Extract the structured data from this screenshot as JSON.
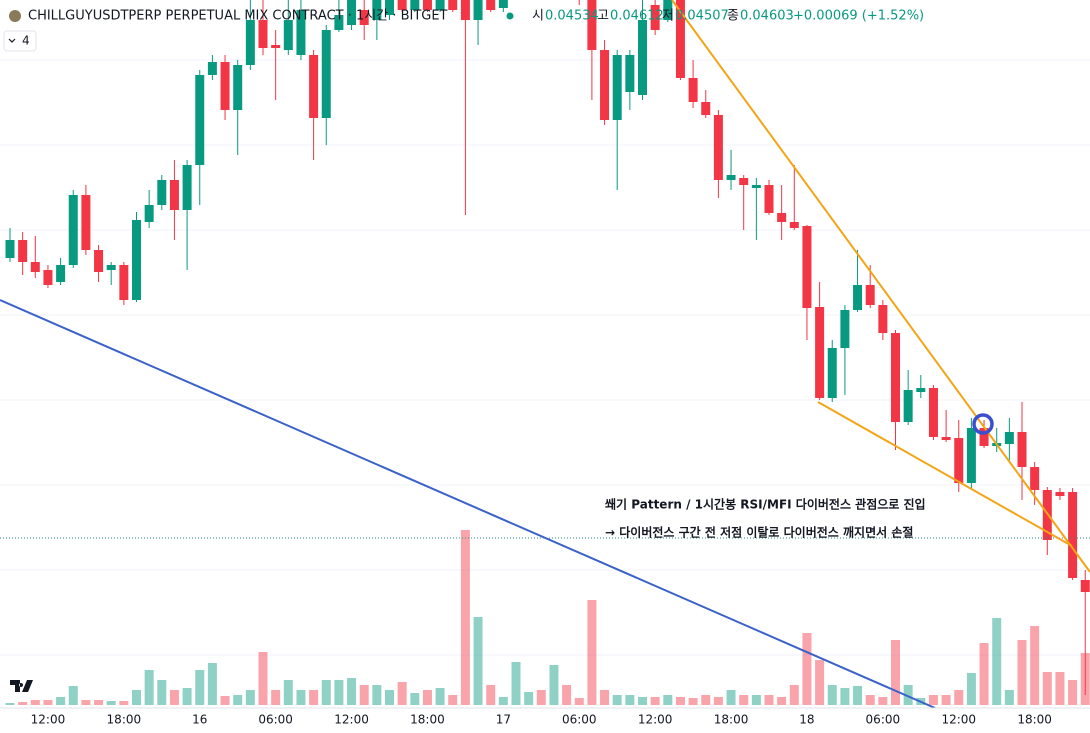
{
  "header": {
    "symbol": "CHILLGUYUSDTPERP PERPETUAL MIX CONTRACT · 1시간 · BITGET",
    "ohlc": [
      {
        "label": "시",
        "value": 0.04534
      },
      {
        "label": "고",
        "value": 0.04612
      },
      {
        "label": "저",
        "value": 0.04507
      },
      {
        "label": "종",
        "value": 0.04603
      }
    ],
    "change": "+0.00069 (+1.52%)",
    "indicators": "4"
  },
  "annotations": [
    "쐐기 Pattern / 1시간봉 RSI/MFI 다이버전스 관점으로 진입",
    "→ 다이버전스 구간 전 저점 이탈로 다이버전스 깨지면서 손절"
  ],
  "chart_data": {
    "type": "candlestick",
    "up_color": "#089981",
    "down_color": "#f23645",
    "ylim": [
      0.04295,
      0.05
    ],
    "y2lim": [
      0,
      705
    ],
    "categories": [
      null,
      null,
      null,
      "12:00",
      null,
      null,
      null,
      null,
      null,
      "18:00",
      null,
      null,
      null,
      null,
      null,
      "16",
      null,
      null,
      null,
      null,
      null,
      "06:00",
      null,
      null,
      null,
      null,
      null,
      "12:00",
      null,
      null,
      null,
      null,
      null,
      "18:00",
      null,
      null,
      null,
      null,
      null,
      "17",
      null,
      null,
      null,
      null,
      null,
      "06:00",
      null,
      null,
      null,
      null,
      null,
      "12:00",
      null,
      null,
      null,
      null,
      null,
      "18:00",
      null,
      null,
      null,
      null,
      null,
      "18",
      null,
      null,
      null,
      null,
      null,
      "06:00",
      null,
      null,
      null,
      null,
      null,
      "12:00",
      null,
      null,
      null,
      null,
      null,
      "18:00",
      null,
      null,
      null,
      null
    ],
    "open": [
      0.04742,
      0.0476,
      0.04738,
      0.0473,
      0.04718,
      0.04735,
      0.04805,
      0.0475,
      0.0473,
      0.04735,
      0.047,
      0.04778,
      0.04795,
      0.0482,
      0.0479,
      0.04835,
      0.04925,
      0.04938,
      0.0489,
      0.04935,
      0.0498,
      0.04955,
      0.0495,
      0.04945,
      0.04945,
      0.04882,
      0.0497,
      0.04975,
      0.0499,
      0.0498,
      0.04985,
      0.05,
      0.0499,
      0.05,
      0.0499,
      0.05,
      0.05,
      0.0498,
      0.05,
      0.04992,
      0.05005,
      0.0503,
      0.0505,
      0.05025,
      0.0504,
      0.0501,
      0.05,
      0.0495,
      0.0488,
      0.04908,
      0.04905,
      0.04995,
      0.0498,
      0.05,
      0.04922,
      0.04898,
      0.04885,
      0.0482,
      0.04822,
      0.04812,
      0.04815,
      0.04787,
      0.04778,
      0.04774,
      0.04693,
      0.04602,
      0.04652,
      0.0469,
      0.04715,
      0.04695,
      0.04667,
      0.04578,
      0.04608,
      0.04612,
      0.04563,
      0.04562,
      0.04517,
      0.04572,
      0.04554,
      0.04556,
      0.04568,
      0.04533,
      0.0451,
      0.04508,
      0.04508,
      0.0442
    ],
    "high": [
      0.04772,
      0.04768,
      0.04764,
      0.04735,
      0.04742,
      0.0481,
      0.04815,
      0.04755,
      0.04738,
      0.04738,
      0.04788,
      0.0481,
      0.04825,
      0.0484,
      0.0484,
      0.0493,
      0.04945,
      0.04945,
      0.0494,
      0.05,
      0.05,
      0.0497,
      0.05,
      0.05,
      0.0495,
      0.04975,
      0.05,
      0.05005,
      0.0501,
      0.0501,
      0.0501,
      0.0501,
      0.0501,
      0.0501,
      0.0501,
      0.0501,
      0.0501,
      0.0501,
      0.0501,
      0.0501,
      0.0504,
      0.0506,
      0.0506,
      0.0505,
      0.0505,
      0.0503,
      0.0501,
      0.0496,
      0.0495,
      0.0495,
      0.0501,
      0.0501,
      0.0501,
      0.0501,
      0.0494,
      0.0491,
      0.0489,
      0.0485,
      0.04825,
      0.04822,
      0.0482,
      0.04815,
      0.04835,
      0.04775,
      0.04718,
      0.0466,
      0.04695,
      0.0475,
      0.04735,
      0.047,
      0.0467,
      0.0463,
      0.04625,
      0.04615,
      0.0459,
      0.0458,
      0.04582,
      0.0458,
      0.04572,
      0.04582,
      0.04598,
      0.04538,
      0.04513,
      0.04512,
      0.04512,
      0.0443
    ],
    "low": [
      0.04738,
      0.04725,
      0.04722,
      0.04712,
      0.04715,
      0.04732,
      0.04745,
      0.04718,
      0.04715,
      0.04695,
      0.04698,
      0.04772,
      0.0479,
      0.0476,
      0.0473,
      0.04795,
      0.0492,
      0.0488,
      0.04845,
      0.0493,
      0.04945,
      0.049,
      0.04945,
      0.0494,
      0.0484,
      0.04855,
      0.04968,
      0.0497,
      0.0496,
      0.0496,
      0.0498,
      0.04988,
      0.04988,
      0.04988,
      0.04988,
      0.04988,
      0.04785,
      0.04955,
      0.04988,
      0.04988,
      0.05,
      0.0502,
      0.0502,
      0.0501,
      0.05005,
      0.04995,
      0.049,
      0.04875,
      0.0481,
      0.0489,
      0.049,
      0.04965,
      0.04978,
      0.0492,
      0.04892,
      0.04882,
      0.04802,
      0.0481,
      0.0477,
      0.0476,
      0.04785,
      0.0476,
      0.0477,
      0.0466,
      0.046,
      0.04598,
      0.04605,
      0.04688,
      0.04692,
      0.0466,
      0.0455,
      0.04575,
      0.04602,
      0.0456,
      0.04558,
      0.04508,
      0.04512,
      0.04552,
      0.04548,
      0.04538,
      0.045,
      0.04495,
      0.04445,
      0.045,
      0.0442,
      0.04305
    ],
    "close": [
      0.0476,
      0.04738,
      0.04728,
      0.04715,
      0.04735,
      0.04805,
      0.0475,
      0.04728,
      0.04735,
      0.047,
      0.0478,
      0.04795,
      0.0482,
      0.0479,
      0.04835,
      0.04925,
      0.04938,
      0.0489,
      0.04935,
      0.0498,
      0.04952,
      0.04952,
      0.0498,
      0.0499,
      0.04882,
      0.0497,
      0.04985,
      0.05,
      0.04975,
      0.05,
      0.05005,
      0.0499,
      0.05,
      0.0499,
      0.05,
      0.0499,
      0.0498,
      0.05,
      0.0499,
      0.05005,
      0.0503,
      0.0505,
      0.05025,
      0.0504,
      0.0501,
      0.05,
      0.0495,
      0.0488,
      0.04945,
      0.04945,
      0.0498,
      0.0497,
      0.05,
      0.04922,
      0.04898,
      0.04885,
      0.0482,
      0.04825,
      0.04815,
      0.04815,
      0.04787,
      0.04778,
      0.04772,
      0.04692,
      0.04602,
      0.04652,
      0.0469,
      0.04715,
      0.04695,
      0.04667,
      0.04578,
      0.0461,
      0.04612,
      0.04563,
      0.0456,
      0.04517,
      0.04572,
      0.04554,
      0.04557,
      0.04568,
      0.04533,
      0.0451,
      0.0446,
      0.04504,
      0.04422,
      0.04408
    ],
    "volume": [
      2,
      3,
      5,
      5,
      8,
      19,
      5,
      5,
      4,
      4,
      15,
      35,
      25,
      15,
      17,
      35,
      42,
      9,
      10,
      15,
      53,
      15,
      25,
      15,
      15,
      25,
      25,
      27,
      20,
      20,
      15,
      23,
      12,
      15,
      17,
      10,
      175,
      88,
      20,
      8,
      43,
      13,
      15,
      40,
      20,
      7,
      105,
      15,
      10,
      10,
      8,
      8,
      10,
      8,
      7,
      10,
      8,
      15,
      10,
      10,
      10,
      8,
      20,
      72,
      45,
      20,
      17,
      19,
      10,
      8,
      65,
      20,
      7,
      10,
      10,
      15,
      32,
      62,
      87,
      15,
      65,
      79,
      33,
      33,
      25,
      52
    ]
  }
}
